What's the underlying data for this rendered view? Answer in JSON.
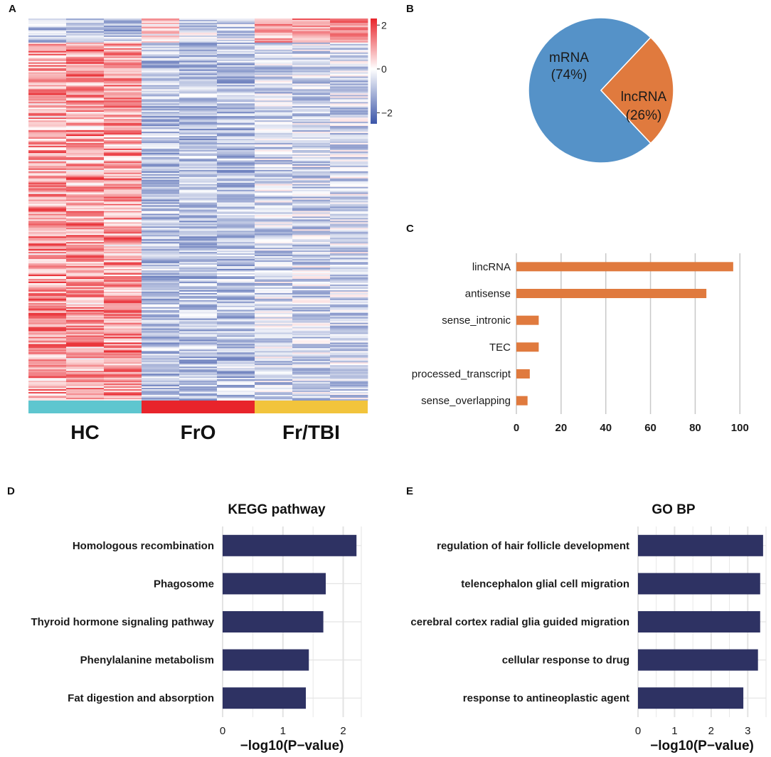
{
  "panels": {
    "a": "A",
    "b": "B",
    "c": "C",
    "d": "D",
    "e": "E"
  },
  "heatmap": {
    "groups": [
      {
        "name": "HC",
        "color": "#5ec6cf"
      },
      {
        "name": "FrO",
        "color": "#e8242b"
      },
      {
        "name": "Fr/TBI",
        "color": "#f2c43c"
      }
    ],
    "legend_ticks": [
      "2",
      "0",
      "−2"
    ],
    "legend_values": [
      2,
      0,
      -2
    ],
    "color_range": [
      -2.5,
      2.3
    ],
    "colors": {
      "low": "#3b55a8",
      "mid": "#ffffff",
      "high": "#e8242b"
    }
  },
  "pie": {
    "slices": [
      {
        "label": "mRNA",
        "pct_label": "(74%)",
        "value": 74,
        "color": "#5592c8"
      },
      {
        "label": "lncRNA",
        "pct_label": "(26%)",
        "value": 26,
        "color": "#e07a3e"
      }
    ]
  },
  "chart_data": [
    {
      "type": "bar",
      "orientation": "horizontal",
      "title": "",
      "categories": [
        "lincRNA",
        "antisense",
        "sense_intronic",
        "TEC",
        "processed_transcript",
        "sense_overlapping"
      ],
      "values": [
        97,
        85,
        10,
        10,
        6,
        5
      ],
      "xlim": [
        0,
        105
      ],
      "xticks": [
        0,
        20,
        40,
        60,
        80,
        100
      ],
      "xlabel": "",
      "ylabel": "",
      "color": "#e07a3e"
    },
    {
      "type": "bar",
      "orientation": "horizontal",
      "title": "KEGG pathway",
      "categories": [
        "Homologous recombination",
        "Phagosome",
        "Thyroid hormone signaling pathway",
        "Phenylalanine metabolism",
        "Fat digestion and absorption"
      ],
      "values": [
        2.22,
        1.71,
        1.67,
        1.43,
        1.38
      ],
      "xlim": [
        0,
        2.3
      ],
      "xticks": [
        0,
        1,
        2
      ],
      "xlabel": "−log10(P−value)",
      "color": "#2e3263"
    },
    {
      "type": "bar",
      "orientation": "horizontal",
      "title": "GO BP",
      "categories": [
        "regulation of hair follicle development",
        "telencephalon glial cell migration",
        "cerebral cortex radial glia guided migration",
        "cellular response to drug",
        "response to antineoplastic agent"
      ],
      "values": [
        3.42,
        3.34,
        3.34,
        3.28,
        2.88
      ],
      "xlim": [
        0,
        3.5
      ],
      "xticks": [
        0,
        1,
        2,
        3
      ],
      "xlabel": "−log10(P−value)",
      "color": "#2e3263"
    }
  ]
}
